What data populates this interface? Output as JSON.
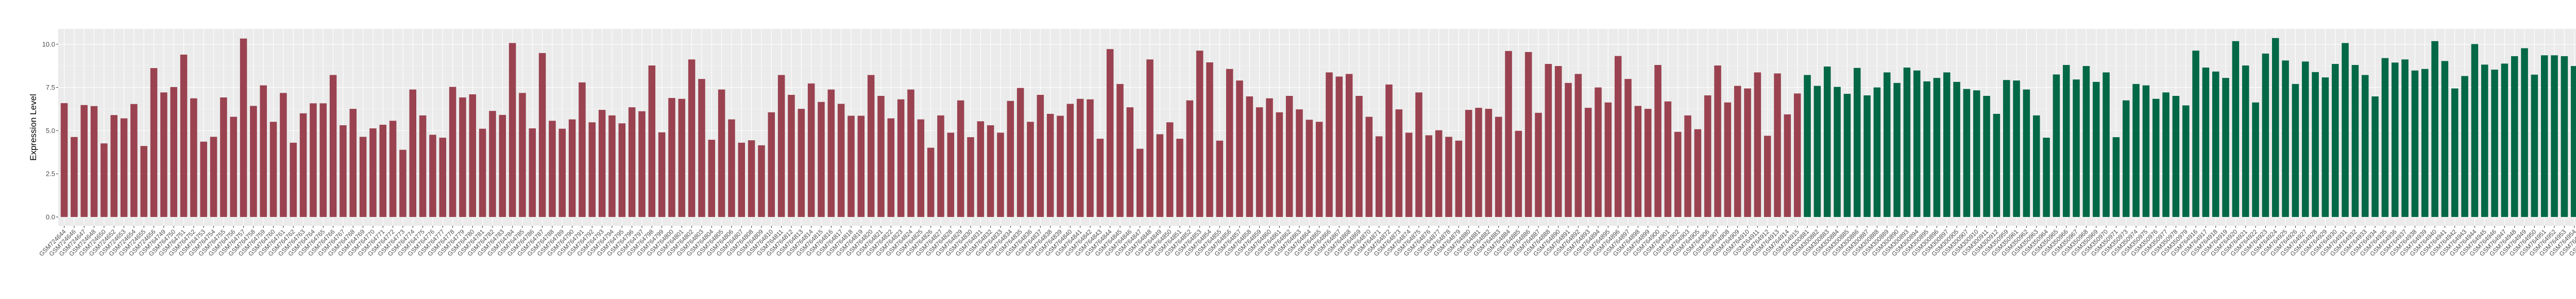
{
  "chart_data": {
    "type": "bar",
    "title": "",
    "xlabel": "",
    "ylabel": "Expression Level",
    "ylim": [
      -0.51,
      10.89
    ],
    "yticks": [
      0.0,
      2.5,
      5.0,
      7.5,
      10.0
    ],
    "ytick_labels": [
      "0.0",
      "2.5",
      "5.0",
      "7.5",
      "10.0"
    ],
    "grid": true,
    "legend": "none",
    "panel_background": "#EBEBEB",
    "series": [
      {
        "color": "#9A4250",
        "categories": [
          "GSM724644",
          "GSM724646",
          "GSM724647",
          "GSM724648",
          "GSM724650",
          "GSM724652",
          "GSM724653",
          "GSM724654",
          "GSM724655",
          "GSM724656",
          "GSM764749",
          "GSM764750",
          "GSM764751",
          "GSM764752",
          "GSM764753",
          "GSM764754",
          "GSM764755",
          "GSM764756",
          "GSM764757",
          "GSM764758",
          "GSM764759",
          "GSM764760",
          "GSM764761",
          "GSM764762",
          "GSM764763",
          "GSM764764",
          "GSM764765",
          "GSM764766",
          "GSM764767",
          "GSM764768",
          "GSM764769",
          "GSM764770",
          "GSM764771",
          "GSM764772",
          "GSM764773",
          "GSM764774",
          "GSM764775",
          "GSM764776",
          "GSM764777",
          "GSM764778",
          "GSM764779",
          "GSM764780",
          "GSM764781",
          "GSM764782",
          "GSM764783",
          "GSM764784",
          "GSM764785",
          "GSM764786",
          "GSM764787",
          "GSM764788",
          "GSM764789",
          "GSM764790",
          "GSM764791",
          "GSM764792",
          "GSM764793",
          "GSM764794",
          "GSM764795",
          "GSM764796",
          "GSM764797",
          "GSM764798",
          "GSM764799",
          "GSM764800",
          "GSM764801",
          "GSM764802",
          "GSM764803",
          "GSM764804",
          "GSM764805",
          "GSM764806",
          "GSM764807",
          "GSM764808",
          "GSM764809",
          "GSM764810",
          "GSM764811",
          "GSM764812",
          "GSM764813",
          "GSM764814",
          "GSM764815",
          "GSM764816",
          "GSM764817",
          "GSM764818",
          "GSM764819",
          "GSM764820",
          "GSM764821",
          "GSM764822",
          "GSM764823",
          "GSM764824",
          "GSM764825",
          "GSM764826",
          "GSM764827",
          "GSM764828",
          "GSM764829",
          "GSM764830",
          "GSM764831",
          "GSM764832",
          "GSM764833",
          "GSM764834",
          "GSM764835",
          "GSM764836",
          "GSM764837",
          "GSM764838",
          "GSM764839",
          "GSM764840",
          "GSM764841",
          "GSM764842",
          "GSM764843",
          "GSM764844",
          "GSM764845",
          "GSM764846",
          "GSM764847",
          "GSM764848",
          "GSM764849",
          "GSM764850",
          "GSM764851",
          "GSM764852",
          "GSM764853",
          "GSM764854",
          "GSM764855",
          "GSM764856",
          "GSM764857",
          "GSM764858",
          "GSM764859",
          "GSM764860",
          "GSM764861",
          "GSM764862",
          "GSM764863",
          "GSM764864",
          "GSM764865",
          "GSM764866",
          "GSM764867",
          "GSM764868",
          "GSM764869",
          "GSM764870",
          "GSM764871",
          "GSM764872",
          "GSM764873",
          "GSM764874",
          "GSM764875",
          "GSM764876",
          "GSM764877",
          "GSM764878",
          "GSM764879",
          "GSM764880",
          "GSM764881",
          "GSM764882",
          "GSM764883",
          "GSM764884",
          "GSM764885",
          "GSM764886",
          "GSM764887",
          "GSM764888",
          "GSM764890",
          "GSM764891",
          "GSM764892",
          "GSM764893",
          "GSM764894",
          "GSM764895",
          "GSM764896",
          "GSM764897",
          "GSM764898",
          "GSM764899",
          "GSM764900",
          "GSM764901",
          "GSM764902",
          "GSM764903",
          "GSM764905",
          "GSM764906",
          "GSM764907",
          "GSM764908",
          "GSM764909",
          "GSM764910",
          "GSM764911",
          "GSM764912",
          "GSM764913",
          "GSM764914",
          "GSM764915"
        ],
        "values": [
          6.59,
          4.63,
          6.48,
          6.42,
          4.26,
          5.9,
          5.71,
          6.54,
          4.11,
          8.62,
          7.21,
          7.52,
          9.4,
          6.87,
          4.36,
          4.64,
          6.92,
          5.8,
          10.33,
          6.43,
          7.62,
          5.51,
          7.18,
          4.3,
          6.0,
          6.58,
          6.58,
          8.22,
          5.31,
          6.26,
          4.64,
          5.13,
          5.34,
          5.57,
          3.89,
          7.38,
          5.88,
          4.76,
          4.59,
          7.53,
          6.92,
          7.1,
          5.11,
          6.14,
          5.91,
          10.07,
          7.18,
          5.13,
          9.49,
          5.57,
          5.11,
          5.65,
          7.79,
          5.48,
          6.2,
          5.88,
          5.42,
          6.35,
          6.12,
          8.77,
          4.9,
          6.89,
          6.84,
          9.12,
          7.99,
          4.47,
          7.38,
          5.65,
          4.3,
          4.44,
          4.15,
          6.06,
          8.22,
          7.07,
          6.26,
          7.73,
          6.66,
          7.38,
          6.55,
          5.86,
          5.86,
          8.22,
          7.01,
          5.71,
          6.81,
          7.38,
          5.65,
          4.01,
          5.88,
          4.88,
          6.75,
          4.62,
          5.54,
          5.31,
          4.88,
          6.72,
          7.47,
          5.51,
          7.07,
          5.97,
          5.86,
          6.55,
          6.84,
          6.81,
          4.53,
          9.72,
          7.7,
          6.35,
          3.95,
          9.12,
          4.79,
          5.48,
          4.53,
          6.75,
          9.63,
          8.95,
          4.42,
          8.57,
          7.9,
          6.98,
          6.35,
          6.87,
          6.06,
          7.01,
          6.23,
          5.63,
          5.51,
          8.37,
          8.13,
          8.28,
          7.01,
          5.8,
          4.67,
          7.67,
          6.23,
          4.88,
          7.21,
          4.73,
          5.02,
          4.64,
          4.42,
          6.2,
          6.32,
          6.26,
          5.8,
          9.61,
          4.99,
          9.55,
          6.03,
          8.86,
          8.74,
          7.76,
          8.28,
          6.32,
          7.5,
          6.63,
          9.32,
          7.99,
          6.43,
          6.26,
          8.8,
          6.69,
          4.93,
          5.88,
          5.08,
          7.04,
          8.77,
          6.63,
          7.59,
          7.44,
          8.37,
          4.7,
          8.31,
          5.94,
          7.15
        ]
      },
      {
        "color": "#036846",
        "categories": [
          "GSM300881",
          "GSM300882",
          "GSM300883",
          "GSM300884",
          "GSM300885",
          "GSM300886",
          "GSM300887",
          "GSM300888",
          "GSM300889",
          "GSM300890",
          "GSM300893",
          "GSM300894",
          "GSM300895",
          "GSM300896",
          "GSM300897",
          "GSM300905",
          "GSM300907",
          "GSM300910",
          "GSM300911",
          "GSM300912",
          "GSM350959",
          "GSM350961",
          "GSM350962",
          "GSM350963",
          "GSM350964",
          "GSM350965",
          "GSM350966",
          "GSM350967",
          "GSM350968",
          "GSM350969",
          "GSM350970",
          "GSM350971",
          "GSM350973",
          "GSM350974",
          "GSM350975",
          "GSM350976",
          "GSM350977",
          "GSM350978",
          "GSM350979",
          "GSM764916",
          "GSM764917",
          "GSM764918",
          "GSM764919",
          "GSM764920",
          "GSM764921",
          "GSM764922",
          "GSM764923",
          "GSM764924",
          "GSM764925",
          "GSM764926",
          "GSM764927",
          "GSM764928",
          "GSM764929",
          "GSM764930",
          "GSM764931",
          "GSM764932",
          "GSM764933",
          "GSM764934",
          "GSM764935",
          "GSM764936",
          "GSM764937",
          "GSM764938",
          "GSM764939",
          "GSM764940",
          "GSM764941",
          "GSM764942",
          "GSM764943",
          "GSM764944",
          "GSM764945",
          "GSM764946",
          "GSM764947",
          "GSM764948",
          "GSM764949",
          "GSM764950",
          "GSM764951",
          "GSM764952",
          "GSM764953",
          "GSM764954",
          "GSM764955",
          "GSM764956",
          "GSM764957",
          "GSM764958",
          "GSM764959",
          "GSM764960",
          "GSM80748",
          "GSM80749"
        ],
        "values": [
          8.22,
          7.59,
          8.71,
          7.53,
          7.13,
          8.63,
          7.04,
          7.5,
          8.37,
          7.76,
          8.65,
          8.48,
          7.85,
          8.05,
          8.37,
          7.82,
          7.41,
          7.33,
          7.01,
          5.97,
          7.93,
          7.9,
          7.38,
          5.88,
          4.59,
          8.25,
          8.8,
          7.96,
          8.74,
          7.82,
          8.37,
          4.62,
          6.75,
          7.7,
          7.62,
          6.84,
          7.21,
          7.01,
          6.46,
          9.63,
          8.65,
          8.42,
          8.05,
          10.18,
          8.77,
          6.63,
          9.46,
          10.36,
          9.06,
          7.7,
          9.0,
          8.39,
          8.08,
          8.86,
          10.07,
          8.8,
          8.22,
          6.98,
          9.2,
          8.94,
          9.12,
          8.48,
          8.57,
          10.18,
          9.03,
          7.44,
          8.16,
          10.01,
          8.82,
          8.53,
          8.88,
          9.31,
          9.77,
          8.24,
          9.36,
          9.36,
          9.31,
          8.74,
          6.63,
          8.59,
          8.04,
          8.07,
          9.28,
          8.68,
          8.13,
          8.88
        ]
      }
    ]
  }
}
